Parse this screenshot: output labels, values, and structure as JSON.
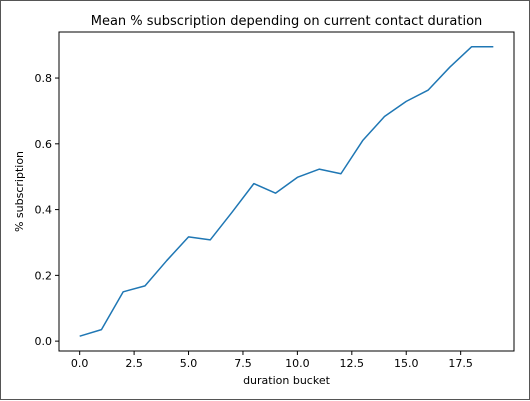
{
  "chart_data": {
    "type": "line",
    "title": "Mean % subscription depending on current contact duration",
    "xlabel": "duration bucket",
    "ylabel": "% subscription",
    "xlim": [
      -0.95,
      19.95
    ],
    "ylim": [
      -0.03,
      0.94
    ],
    "grid": false,
    "x_ticks": [
      0.0,
      2.5,
      5.0,
      7.5,
      10.0,
      12.5,
      15.0,
      17.5
    ],
    "x_tick_labels": [
      "0.0",
      "2.5",
      "5.0",
      "7.5",
      "10.0",
      "12.5",
      "15.0",
      "17.5"
    ],
    "y_ticks": [
      0.0,
      0.2,
      0.4,
      0.6,
      0.8
    ],
    "y_tick_labels": [
      "0.0",
      "0.2",
      "0.4",
      "0.6",
      "0.8"
    ],
    "series": [
      {
        "color": "#1f77b4",
        "x": [
          0,
          1,
          2,
          3,
          4,
          5,
          6,
          7,
          8,
          9,
          10,
          11,
          12,
          13,
          14,
          15,
          16,
          17,
          18,
          19
        ],
        "values": [
          0.015,
          0.035,
          0.15,
          0.168,
          0.245,
          0.317,
          0.308,
          0.392,
          0.479,
          0.45,
          0.498,
          0.523,
          0.509,
          0.61,
          0.683,
          0.729,
          0.763,
          0.833,
          0.895,
          0.895
        ]
      }
    ]
  }
}
